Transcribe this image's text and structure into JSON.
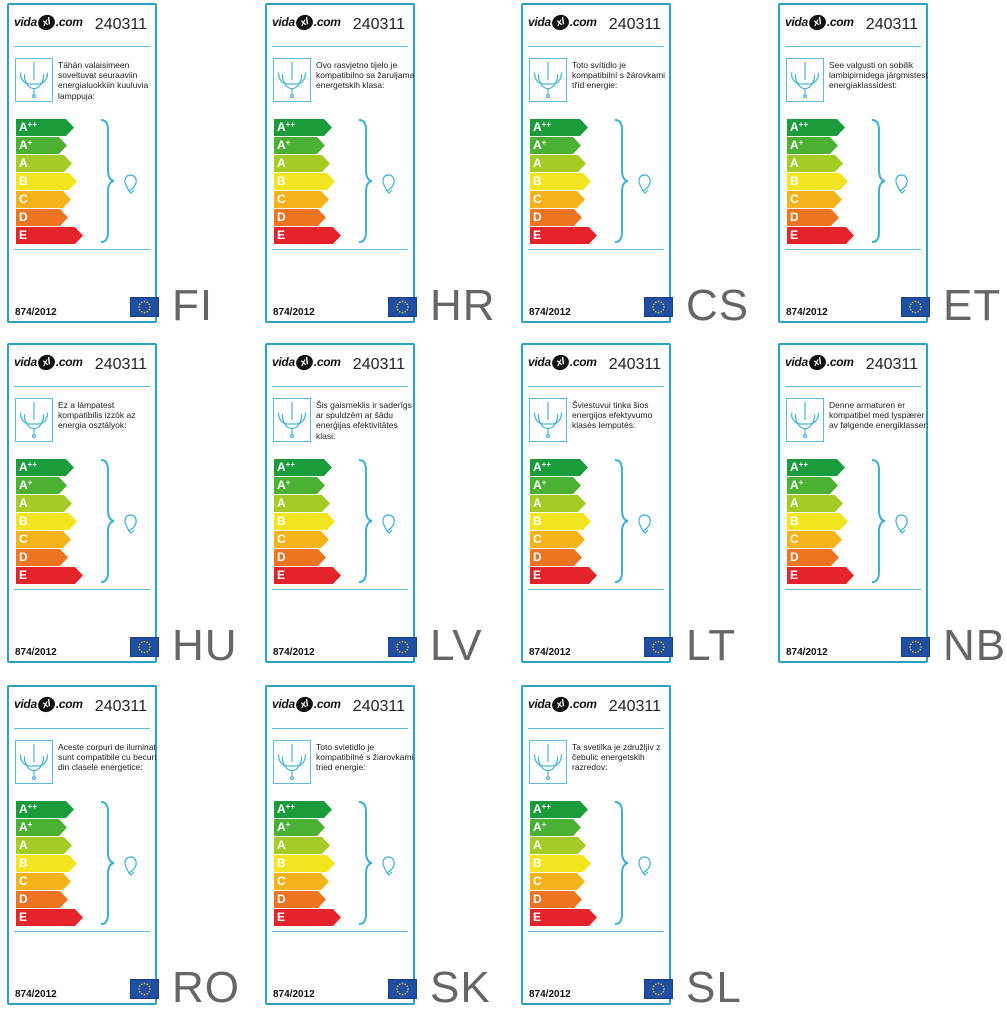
{
  "labels": [
    {
      "brand": "vidaXL.com",
      "code": "240311",
      "description": "Tähän valaisimeen soveltuvat seuraaviin energialuokkiin kuuluvia lamppuja:",
      "regulation": "874/2012",
      "language": "FI"
    },
    {
      "brand": "vidaXL.com",
      "code": "240311",
      "description": "Ovo rasvjetno tijelo je kompatibilno sa žaruljama energetskih klasa:",
      "regulation": "874/2012",
      "language": "HR"
    },
    {
      "brand": "vidaXL.com",
      "code": "240311",
      "description": "Toto svítidlo je kompatibilní s žárovkami tříd energie:",
      "regulation": "874/2012",
      "language": "CS"
    },
    {
      "brand": "vidaXL.com",
      "code": "240311",
      "description": "See valgusti on sobilik lambipirnidega järgmistest energiaklassidest:",
      "regulation": "874/2012",
      "language": "ET"
    },
    {
      "brand": "vidaXL.com",
      "code": "240311",
      "description": "Ez a lámpatest kompatibilis izzók az energia osztályok:",
      "regulation": "874/2012",
      "language": "HU"
    },
    {
      "brand": "vidaXL.com",
      "code": "240311",
      "description": "Šis gaismeklis ir saderīgs ar spuldzēm ar šādu enerģijas efektivitātes klasi:",
      "regulation": "874/2012",
      "language": "LV"
    },
    {
      "brand": "vidaXL.com",
      "code": "240311",
      "description": "Šviestuvui tinka šios energijos efektyvumo klasės lemputės:",
      "regulation": "874/2012",
      "language": "LT"
    },
    {
      "brand": "vidaXL.com",
      "code": "240311",
      "description": "Denne armaturen er kompatibel med lyspærer av følgende energiklasser:",
      "regulation": "874/2012",
      "language": "NB"
    },
    {
      "brand": "vidaXL.com",
      "code": "240311",
      "description": "Aceste corpuri de iluminat sunt compatibile cu becuri din clasele energetice:",
      "regulation": "874/2012",
      "language": "RO"
    },
    {
      "brand": "vidaXL.com",
      "code": "240311",
      "description": "Toto svietidlo je kompatibilné s žiarovkami tried energie:",
      "regulation": "874/2012",
      "language": "SK"
    },
    {
      "brand": "vidaXL.com",
      "code": "240311",
      "description": "Ta svetilka je združljiv z čebulic energetskih razredov:",
      "regulation": "874/2012",
      "language": "SL"
    }
  ],
  "energy_classes": [
    {
      "letter": "A",
      "sup": "++",
      "color": "#1a9b3c"
    },
    {
      "letter": "A",
      "sup": "+",
      "color": "#4bb133"
    },
    {
      "letter": "A",
      "sup": "",
      "color": "#a4cc25"
    },
    {
      "letter": "B",
      "sup": "",
      "color": "#f2e51f"
    },
    {
      "letter": "C",
      "sup": "",
      "color": "#f4b21b"
    },
    {
      "letter": "D",
      "sup": "",
      "color": "#ed7420"
    },
    {
      "letter": "E",
      "sup": "",
      "color": "#e4232b"
    }
  ],
  "icons": {
    "lamp": "chandelier-icon",
    "bulb": "light-bulb-icon",
    "flag": "eu-flag-icon",
    "brace": "curly-brace-icon"
  },
  "colors": {
    "border": "#2aa3c4",
    "accent": "#5fbcd6",
    "language_text": "#666666"
  }
}
